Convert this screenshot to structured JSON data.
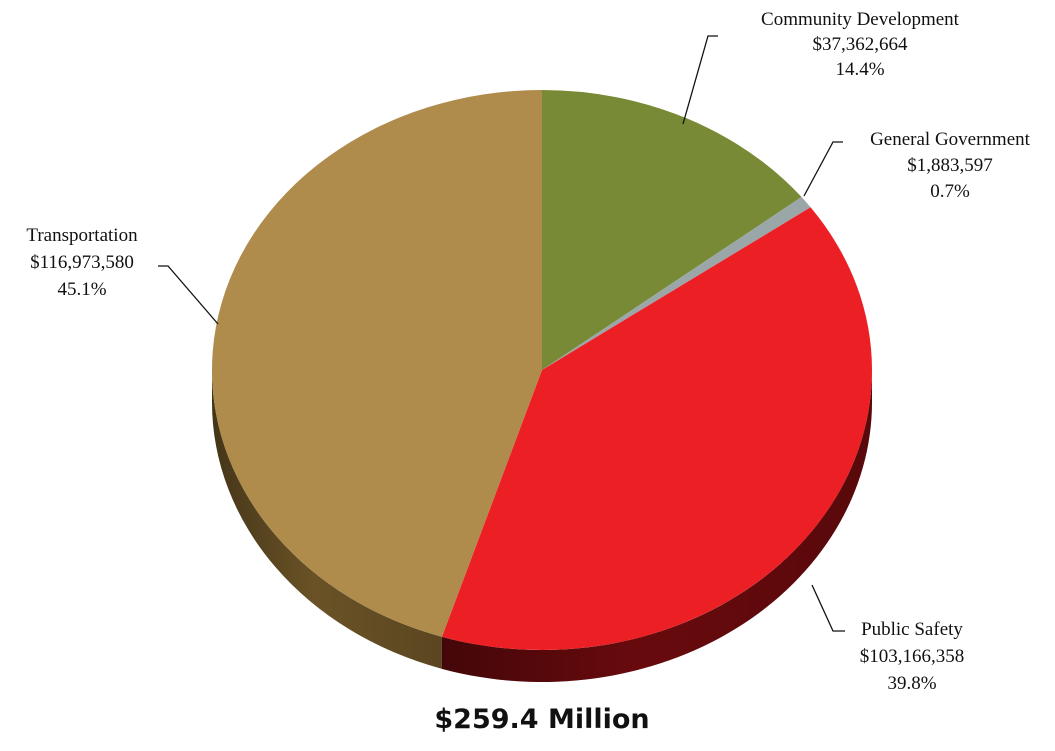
{
  "chart_data": {
    "type": "pie",
    "style": "3d",
    "total_label": "$259.4 Million",
    "slices": [
      {
        "name": "Community Development",
        "value_label": "$37,362,664",
        "value": 37362664,
        "percent_label": "14.4%",
        "percent": 14.4,
        "color": "#788a36",
        "side_color": "#4d5a20"
      },
      {
        "name": "General Government",
        "value_label": "$1,883,597",
        "value": 1883597,
        "percent_label": "0.7%",
        "percent": 0.7,
        "color": "#9aa6a8",
        "side_color": "#646c6e"
      },
      {
        "name": "Public Safety",
        "value_label": "$103,166,358",
        "value": 103166358,
        "percent_label": "39.8%",
        "percent": 39.8,
        "color": "#ec2024",
        "side_color": "#680a0d"
      },
      {
        "name": "Transportation",
        "value_label": "$116,973,580",
        "value": 116973580,
        "percent_label": "45.1%",
        "percent": 45.1,
        "color": "#af8c4c",
        "side_color": "#6a5226"
      }
    ]
  }
}
